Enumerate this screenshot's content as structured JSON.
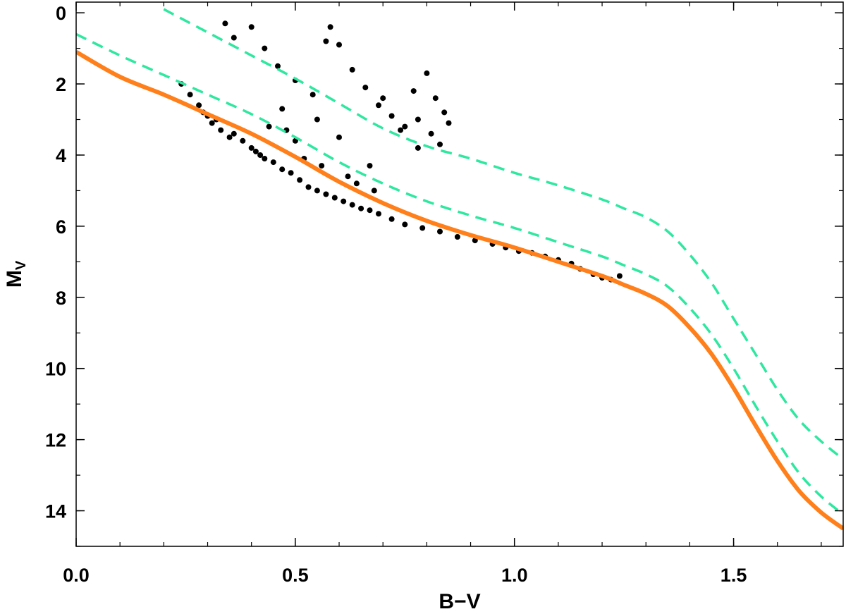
{
  "chart_data": {
    "type": "scatter",
    "xlabel": "B−V",
    "ylabel": "M",
    "ylabel_subscript": "V",
    "xlim": [
      0.0,
      1.75
    ],
    "ylim": [
      15.0,
      -0.3
    ],
    "y_inverted": true,
    "grid": false,
    "xticks": [
      0.0,
      0.5,
      1.0,
      1.5
    ],
    "xtick_labels": [
      "0.0",
      "0.5",
      "1.0",
      "1.5"
    ],
    "xminor_step": 0.1,
    "yticks": [
      0,
      2,
      4,
      6,
      8,
      10,
      12,
      14
    ],
    "ytick_labels": [
      "0",
      "2",
      "4",
      "6",
      "8",
      "10",
      "12",
      "14"
    ],
    "yminor_step": 1,
    "colors": {
      "stars": "#000000",
      "main_sequence": "#ff7f1a",
      "dashed": "#2ee8a0",
      "frame": "#000000"
    },
    "curves": [
      {
        "style": "solid",
        "color": "#ff7f1a",
        "x": [
          0.0,
          0.1,
          0.2,
          0.3,
          0.4,
          0.5,
          0.6,
          0.7,
          0.8,
          0.9,
          1.0,
          1.1,
          1.2,
          1.25,
          1.3,
          1.35,
          1.4,
          1.45,
          1.5,
          1.55,
          1.6,
          1.65,
          1.7,
          1.75
        ],
        "y": [
          1.1,
          1.8,
          2.3,
          2.85,
          3.4,
          4.05,
          4.75,
          5.35,
          5.85,
          6.25,
          6.6,
          7.0,
          7.4,
          7.65,
          7.9,
          8.25,
          8.85,
          9.6,
          10.55,
          11.6,
          12.6,
          13.45,
          14.05,
          14.5
        ]
      },
      {
        "style": "dashed",
        "color": "#2ee8a0",
        "x": [
          0.0,
          0.1,
          0.2,
          0.3,
          0.4,
          0.5,
          0.6,
          0.7,
          0.8,
          0.9,
          1.0,
          1.1,
          1.2,
          1.25,
          1.3,
          1.35,
          1.4,
          1.45,
          1.5,
          1.55,
          1.6,
          1.65,
          1.7,
          1.75
        ],
        "y": [
          0.6,
          1.2,
          1.75,
          2.3,
          2.85,
          3.5,
          4.2,
          4.8,
          5.3,
          5.7,
          6.05,
          6.45,
          6.85,
          7.1,
          7.35,
          7.7,
          8.3,
          9.05,
          10.0,
          11.05,
          12.05,
          12.95,
          13.6,
          14.1
        ]
      },
      {
        "style": "dashed",
        "color": "#2ee8a0",
        "x": [
          0.2,
          0.3,
          0.4,
          0.5,
          0.6,
          0.7,
          0.8,
          0.9,
          1.0,
          1.1,
          1.2,
          1.25,
          1.3,
          1.35,
          1.4,
          1.45,
          1.5,
          1.55,
          1.6,
          1.65,
          1.7,
          1.75
        ],
        "y": [
          -0.1,
          0.55,
          1.2,
          1.85,
          2.55,
          3.25,
          3.75,
          4.1,
          4.5,
          4.85,
          5.25,
          5.5,
          5.75,
          6.15,
          6.8,
          7.6,
          8.6,
          9.6,
          10.6,
          11.45,
          12.05,
          12.55
        ]
      }
    ],
    "stars": {
      "x": [
        0.24,
        0.26,
        0.28,
        0.29,
        0.3,
        0.31,
        0.32,
        0.33,
        0.35,
        0.36,
        0.38,
        0.4,
        0.41,
        0.42,
        0.43,
        0.45,
        0.47,
        0.49,
        0.51,
        0.53,
        0.55,
        0.57,
        0.59,
        0.61,
        0.63,
        0.65,
        0.67,
        0.69,
        0.72,
        0.75,
        0.79,
        0.83,
        0.87,
        0.91,
        0.95,
        0.98,
        1.01,
        1.04,
        1.07,
        1.1,
        1.13,
        1.15,
        1.18,
        1.2,
        1.22,
        1.24,
        0.34,
        0.36,
        0.4,
        0.43,
        0.46,
        0.5,
        0.54,
        0.57,
        0.58,
        0.6,
        0.63,
        0.66,
        0.69,
        0.72,
        0.75,
        0.78,
        0.8,
        0.82,
        0.84,
        0.78,
        0.81,
        0.83,
        0.55,
        0.6,
        0.67,
        0.62,
        0.5,
        0.47,
        0.7,
        0.74,
        0.77,
        0.85,
        0.52,
        0.56,
        0.64,
        0.68,
        0.44,
        0.48
      ],
      "y": [
        2.0,
        2.3,
        2.6,
        2.8,
        2.9,
        3.1,
        3.0,
        3.3,
        3.5,
        3.4,
        3.6,
        3.8,
        3.9,
        4.0,
        4.1,
        4.2,
        4.4,
        4.5,
        4.7,
        4.9,
        5.0,
        5.1,
        5.2,
        5.3,
        5.4,
        5.5,
        5.55,
        5.65,
        5.8,
        5.95,
        6.05,
        6.15,
        6.3,
        6.4,
        6.5,
        6.6,
        6.7,
        6.75,
        6.85,
        6.95,
        7.05,
        7.2,
        7.35,
        7.45,
        7.5,
        7.4,
        0.3,
        0.7,
        0.4,
        1.0,
        1.5,
        1.9,
        2.3,
        0.8,
        0.4,
        0.9,
        1.6,
        2.1,
        2.6,
        2.9,
        3.2,
        3.0,
        1.7,
        2.4,
        2.8,
        3.8,
        3.4,
        3.7,
        3.0,
        3.5,
        4.3,
        4.6,
        3.6,
        2.7,
        2.4,
        3.3,
        2.2,
        3.1,
        4.1,
        4.3,
        4.8,
        5.0,
        3.2,
        3.3
      ],
      "count_note": ""
    }
  }
}
